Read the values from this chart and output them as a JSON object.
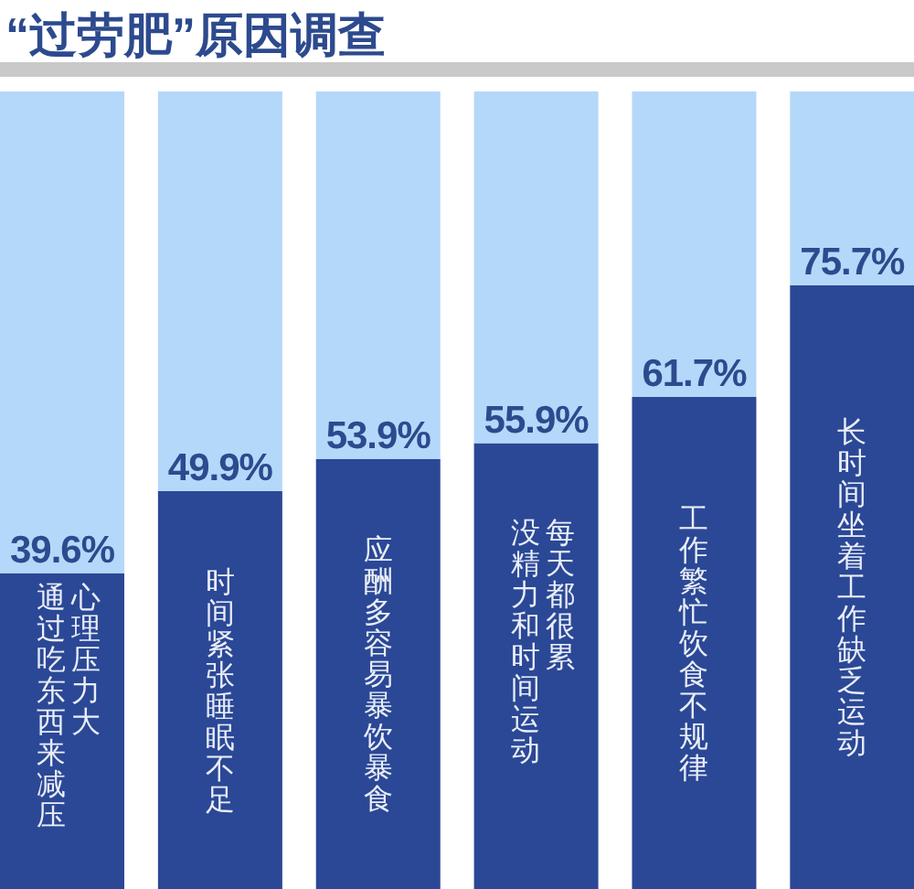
{
  "chart_data": {
    "type": "bar",
    "title": "“过劳肥”原因调查",
    "categories": [
      "心理压力大通过吃东西来减压",
      "时间紧张睡眠不足",
      "应酬多容易暴饮暴食",
      "每天都很累没精力和时间运动",
      "工作繁忙饮食不规律",
      "长时间坐着工作缺乏运动"
    ],
    "series": [
      {
        "color": "#2b4896",
        "values": [
          39.6,
          49.9,
          53.9,
          55.9,
          61.7,
          75.7
        ],
        "value_labels": [
          "39.6%",
          "49.9%",
          "53.9%",
          "55.9%",
          "61.7%",
          "75.7%"
        ]
      },
      {
        "color": "#b4d8f9",
        "values": [
          60.4,
          50.1,
          46.1,
          44.1,
          38.3,
          24.3
        ]
      }
    ],
    "stacked": true,
    "ylim": [
      0,
      100
    ],
    "tick_labels": "x"
  }
}
